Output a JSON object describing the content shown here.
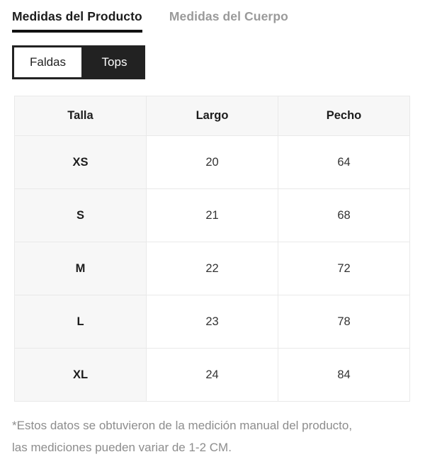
{
  "colors": {
    "active_tab_text": "#1c1c1c",
    "inactive_tab_text": "#9a9a9a",
    "tab_underline": "#111111",
    "toggle_dark": "#222222",
    "table_header_bg": "#f7f7f7",
    "table_border": "#e9e9e9",
    "cell_text": "#333333",
    "footnote_text": "#8d8d8d"
  },
  "tabs": [
    {
      "label": "Medidas del Producto",
      "active": true
    },
    {
      "label": "Medidas del Cuerpo",
      "active": false
    }
  ],
  "category_toggle": [
    {
      "label": "Faldas",
      "selected": false
    },
    {
      "label": "Tops",
      "selected": true
    }
  ],
  "size_table": {
    "columns": [
      "Talla",
      "Largo",
      "Pecho"
    ],
    "rows": [
      {
        "talla": "XS",
        "largo": "20",
        "pecho": "64"
      },
      {
        "talla": "S",
        "largo": "21",
        "pecho": "68"
      },
      {
        "talla": "M",
        "largo": "22",
        "pecho": "72"
      },
      {
        "talla": "L",
        "largo": "23",
        "pecho": "78"
      },
      {
        "talla": "XL",
        "largo": "24",
        "pecho": "84"
      }
    ]
  },
  "footnote": {
    "lines": [
      "*Estos datos se obtuvieron de la medición manual del producto,",
      "las mediciones pueden variar de 1-2 CM."
    ]
  }
}
